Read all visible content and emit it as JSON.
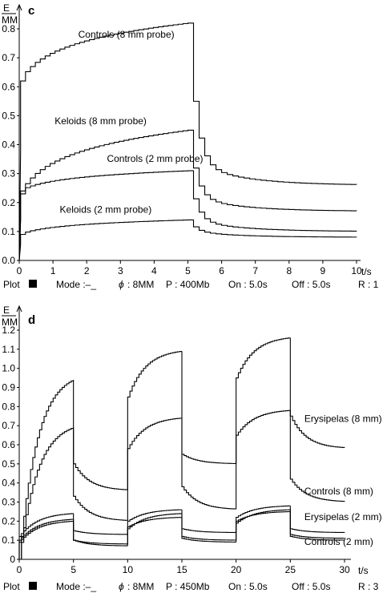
{
  "chart_data": [
    {
      "type": "line",
      "panel": "c",
      "ylabel_top": "E",
      "ylabel_bottom": "MM",
      "xlabel": "t/s",
      "xlim": [
        0,
        10
      ],
      "ylim": [
        0,
        0.85
      ],
      "x_ticks": [
        0,
        1,
        2,
        3,
        4,
        5,
        6,
        7,
        8,
        9,
        10
      ],
      "y_ticks": [
        0,
        0.1,
        0.2,
        0.3,
        0.4,
        0.5,
        0.6,
        0.7,
        0.8
      ],
      "x_tick_labels": [
        "0",
        "1",
        "2",
        "3",
        "4",
        "5",
        "6",
        "7",
        "8",
        "9",
        "10"
      ],
      "y_tick_labels": [
        "0.0",
        "0.1",
        "0.2",
        "0.3",
        "0.4",
        "0.5",
        "0.6",
        "0.7",
        "0.8"
      ],
      "series": [
        {
          "name": "Controls (8 mm probe)",
          "on_start": 0.62,
          "on_end": 0.82,
          "plateau_start": 0.34,
          "off_end": 0.26
        },
        {
          "name": "Keloids (8 mm probe)",
          "on_start": 0.23,
          "on_end": 0.45,
          "plateau_start": 0.22,
          "off_end": 0.17
        },
        {
          "name": "Controls (2 mm probe)",
          "on_start": 0.24,
          "on_end": 0.31,
          "plateau_start": 0.14,
          "off_end": 0.1
        },
        {
          "name": "Keloids (2 mm probe)",
          "on_start": 0.09,
          "on_end": 0.14,
          "plateau_start": 0.1,
          "off_end": 0.08
        }
      ],
      "annotations": [
        {
          "text": "Controls (8 mm probe)",
          "x": 4.6,
          "y": 0.77
        },
        {
          "text": "Keloids (8 mm probe)",
          "x": 1.05,
          "y": 0.47
        },
        {
          "text": "Controls (2 mm probe)",
          "x": 2.6,
          "y": 0.34
        },
        {
          "text": "Keloids (2 mm probe)",
          "x": 1.2,
          "y": 0.165
        }
      ],
      "status": {
        "plot": "Plot",
        "mode": "Mode :–_",
        "phi_symbol": "ϕ",
        "diameter": ": 8MM",
        "pressure": "P : 400Mb",
        "on": "On : 5.0s",
        "off": "Off : 5.0s",
        "repetitions": "R : 1"
      }
    },
    {
      "type": "line",
      "panel": "d",
      "ylabel_top": "E",
      "ylabel_bottom": "MM",
      "xlabel": "t/s",
      "xlim": [
        0,
        30
      ],
      "ylim": [
        0,
        1.25
      ],
      "x_ticks": [
        0,
        5,
        10,
        15,
        20,
        25,
        30
      ],
      "y_ticks": [
        0,
        0.1,
        0.2,
        0.3,
        0.4,
        0.5,
        0.6,
        0.7,
        0.8,
        0.9,
        1.0,
        1.1,
        1.2
      ],
      "x_tick_labels": [
        "0",
        "5",
        "10",
        "15",
        "20",
        "25",
        "30"
      ],
      "y_tick_labels": [
        "0",
        "0.1",
        "0.2",
        "0.3",
        "0.4",
        "0.5",
        "0.6",
        "0.7",
        "0.8",
        "0.9",
        "1.0",
        "1.1",
        "1.2"
      ],
      "series": [
        {
          "name": "Erysipelas (8 mm)",
          "cycles": [
            {
              "on_start": 0.0,
              "on_end": 0.94,
              "off_start": 0.5,
              "off_end": 0.36
            },
            {
              "on_start": 0.85,
              "on_end": 1.09,
              "off_start": 0.55,
              "off_end": 0.5
            },
            {
              "on_start": 0.95,
              "on_end": 1.16,
              "off_start": 0.75,
              "off_end": 0.58
            }
          ]
        },
        {
          "name": "Controls (8 mm)",
          "cycles": [
            {
              "on_start": 0.0,
              "on_end": 0.69,
              "off_start": 0.33,
              "off_end": 0.2
            },
            {
              "on_start": 0.58,
              "on_end": 0.74,
              "off_start": 0.38,
              "off_end": 0.26
            },
            {
              "on_start": 0.65,
              "on_end": 0.78,
              "off_start": 0.42,
              "off_end": 0.3
            }
          ]
        },
        {
          "name": "Erysipelas (2 mm)",
          "cycles": [
            {
              "on_start": 0.12,
              "on_end": 0.24,
              "off_start": 0.15,
              "off_end": 0.13
            },
            {
              "on_start": 0.2,
              "on_end": 0.26,
              "off_start": 0.16,
              "off_end": 0.14
            },
            {
              "on_start": 0.22,
              "on_end": 0.28,
              "off_start": 0.16,
              "off_end": 0.14
            }
          ]
        },
        {
          "name": "Controls (2 mm)",
          "cycles": [
            {
              "on_start": 0.09,
              "on_end": 0.2,
              "off_start": 0.1,
              "off_end": 0.08
            },
            {
              "on_start": 0.16,
              "on_end": 0.24,
              "off_start": 0.12,
              "off_end": 0.1
            },
            {
              "on_start": 0.19,
              "on_end": 0.26,
              "off_start": 0.13,
              "off_end": 0.11
            }
          ]
        },
        {
          "name": "",
          "cycles": [
            {
              "on_start": 0.1,
              "on_end": 0.21,
              "off_start": 0.1,
              "off_end": 0.07
            },
            {
              "on_start": 0.17,
              "on_end": 0.22,
              "off_start": 0.11,
              "off_end": 0.09
            },
            {
              "on_start": 0.2,
              "on_end": 0.25,
              "off_start": 0.12,
              "off_end": 0.1
            }
          ]
        }
      ],
      "annotations": [
        {
          "text": "Erysipelas (8 mm)",
          "x": 26.3,
          "y": 0.72
        },
        {
          "text": "Controls (8 mm)",
          "x": 26.3,
          "y": 0.34
        },
        {
          "text": "Erysipelas (2 mm)",
          "x": 26.3,
          "y": 0.205
        },
        {
          "text": "Controls (2 mm)",
          "x": 26.3,
          "y": 0.075
        }
      ],
      "status": {
        "plot": "Plot",
        "mode": "Mode :–_",
        "phi_symbol": "ϕ",
        "diameter": ": 8MM",
        "pressure": "P : 450Mb",
        "on": "On : 5.0s",
        "off": "Off : 5.0s",
        "repetitions": "R : 3"
      }
    }
  ]
}
